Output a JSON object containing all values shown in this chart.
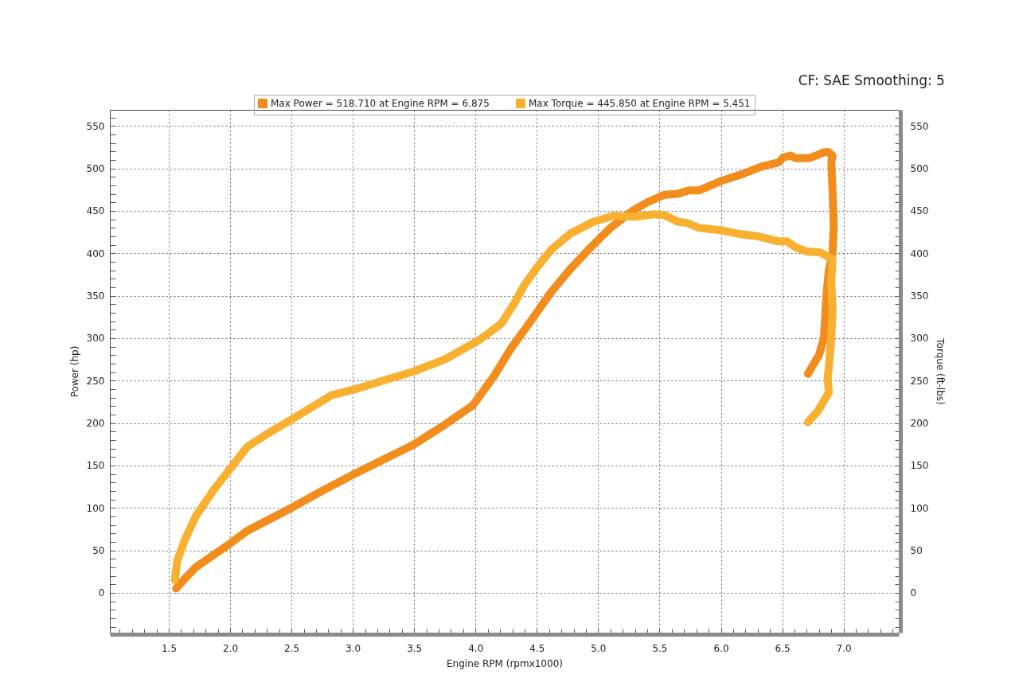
{
  "chart_data": {
    "type": "line",
    "title": "CF: SAE Smoothing: 5",
    "xlabel": "Engine RPM (rpmx1000)",
    "ylabel": "Power (hp)",
    "y2label": "Torque (ft-lbs)",
    "xlim": [
      1.02,
      7.45
    ],
    "ylim": [
      -47,
      569
    ],
    "y2lim": [
      -47,
      569
    ],
    "xticks": [
      {
        "value": 1.1,
        "label": null
      },
      {
        "value": 1.2,
        "label": null
      },
      {
        "value": 1.3,
        "label": null
      },
      {
        "value": 1.4,
        "label": null
      },
      1.5,
      {
        "value": 1.6,
        "label": null
      },
      {
        "value": 1.7,
        "label": null
      },
      {
        "value": 1.8,
        "label": null
      },
      {
        "value": 1.9,
        "label": null
      },
      {
        "value": 2,
        "label": "2.0"
      },
      {
        "value": 2.1,
        "label": null
      },
      {
        "value": 2.2,
        "label": null
      },
      {
        "value": 2.3,
        "label": null
      },
      {
        "value": 2.4,
        "label": null
      },
      2.5,
      {
        "value": 2.6,
        "label": null
      },
      {
        "value": 2.7,
        "label": null
      },
      {
        "value": 2.8,
        "label": null
      },
      {
        "value": 2.9,
        "label": null
      },
      {
        "value": 3,
        "label": "3.0"
      },
      {
        "value": 3.1,
        "label": null
      },
      {
        "value": 3.2,
        "label": null
      },
      {
        "value": 3.3,
        "label": null
      },
      {
        "value": 3.4,
        "label": null
      },
      3.5,
      {
        "value": 3.6,
        "label": null
      },
      {
        "value": 3.7,
        "label": null
      },
      {
        "value": 3.8,
        "label": null
      },
      {
        "value": 3.9,
        "label": null
      },
      {
        "value": 4,
        "label": "4.0"
      },
      {
        "value": 4.1,
        "label": null
      },
      {
        "value": 4.2,
        "label": null
      },
      {
        "value": 4.3,
        "label": null
      },
      {
        "value": 4.4,
        "label": null
      },
      4.5,
      {
        "value": 4.6,
        "label": null
      },
      {
        "value": 4.7,
        "label": null
      },
      {
        "value": 4.8,
        "label": null
      },
      {
        "value": 4.9,
        "label": null
      },
      {
        "value": 5,
        "label": "5.0"
      },
      {
        "value": 5.1,
        "label": null
      },
      {
        "value": 5.2,
        "label": null
      },
      {
        "value": 5.3,
        "label": null
      },
      {
        "value": 5.4,
        "label": null
      },
      5.5,
      {
        "value": 5.6,
        "label": null
      },
      {
        "value": 5.7,
        "label": null
      },
      {
        "value": 5.8,
        "label": null
      },
      {
        "value": 5.9,
        "label": null
      },
      {
        "value": 6,
        "label": "6.0"
      },
      {
        "value": 6.1,
        "label": null
      },
      {
        "value": 6.2,
        "label": null
      },
      {
        "value": 6.3,
        "label": null
      },
      {
        "value": 6.4,
        "label": null
      },
      6.5,
      {
        "value": 6.6,
        "label": null
      },
      {
        "value": 6.7,
        "label": null
      },
      {
        "value": 6.8,
        "label": null
      },
      {
        "value": 6.9,
        "label": null
      },
      {
        "value": 7,
        "label": "7.0"
      },
      {
        "value": 7.1,
        "label": null
      },
      {
        "value": 7.2,
        "label": null
      },
      {
        "value": 7.3,
        "label": null
      },
      {
        "value": 7.4,
        "label": null
      }
    ],
    "yticks": [
      {
        "value": -40,
        "label": null
      },
      {
        "value": -30,
        "label": null
      },
      {
        "value": -20,
        "label": null
      },
      {
        "value": -10,
        "label": null
      },
      0,
      {
        "value": 10,
        "label": null
      },
      {
        "value": 20,
        "label": null
      },
      {
        "value": 30,
        "label": null
      },
      {
        "value": 40,
        "label": null
      },
      50,
      {
        "value": 60,
        "label": null
      },
      {
        "value": 70,
        "label": null
      },
      {
        "value": 80,
        "label": null
      },
      {
        "value": 90,
        "label": null
      },
      100,
      {
        "value": 110,
        "label": null
      },
      {
        "value": 120,
        "label": null
      },
      {
        "value": 130,
        "label": null
      },
      {
        "value": 140,
        "label": null
      },
      150,
      {
        "value": 160,
        "label": null
      },
      {
        "value": 170,
        "label": null
      },
      {
        "value": 180,
        "label": null
      },
      {
        "value": 190,
        "label": null
      },
      200,
      {
        "value": 210,
        "label": null
      },
      {
        "value": 220,
        "label": null
      },
      {
        "value": 230,
        "label": null
      },
      {
        "value": 240,
        "label": null
      },
      250,
      {
        "value": 260,
        "label": null
      },
      {
        "value": 270,
        "label": null
      },
      {
        "value": 280,
        "label": null
      },
      {
        "value": 290,
        "label": null
      },
      300,
      {
        "value": 310,
        "label": null
      },
      {
        "value": 320,
        "label": null
      },
      {
        "value": 330,
        "label": null
      },
      {
        "value": 340,
        "label": null
      },
      350,
      {
        "value": 360,
        "label": null
      },
      {
        "value": 370,
        "label": null
      },
      {
        "value": 380,
        "label": null
      },
      {
        "value": 390,
        "label": null
      },
      400,
      {
        "value": 410,
        "label": null
      },
      {
        "value": 420,
        "label": null
      },
      {
        "value": 430,
        "label": null
      },
      {
        "value": 440,
        "label": null
      },
      450,
      {
        "value": 460,
        "label": null
      },
      {
        "value": 470,
        "label": null
      },
      {
        "value": 480,
        "label": null
      },
      {
        "value": 490,
        "label": null
      },
      500,
      {
        "value": 510,
        "label": null
      },
      {
        "value": 520,
        "label": null
      },
      {
        "value": 530,
        "label": null
      },
      {
        "value": 540,
        "label": null
      },
      550,
      {
        "value": 560,
        "label": null
      }
    ],
    "y2ticks": [
      {
        "value": -40,
        "label": null
      },
      {
        "value": -30,
        "label": null
      },
      {
        "value": -20,
        "label": null
      },
      {
        "value": -10,
        "label": null
      },
      0,
      {
        "value": 10,
        "label": null
      },
      {
        "value": 20,
        "label": null
      },
      {
        "value": 30,
        "label": null
      },
      {
        "value": 40,
        "label": null
      },
      50,
      {
        "value": 60,
        "label": null
      },
      {
        "value": 70,
        "label": null
      },
      {
        "value": 80,
        "label": null
      },
      {
        "value": 90,
        "label": null
      },
      100,
      {
        "value": 110,
        "label": null
      },
      {
        "value": 120,
        "label": null
      },
      {
        "value": 130,
        "label": null
      },
      {
        "value": 140,
        "label": null
      },
      150,
      {
        "value": 160,
        "label": null
      },
      {
        "value": 170,
        "label": null
      },
      {
        "value": 180,
        "label": null
      },
      {
        "value": 190,
        "label": null
      },
      200,
      {
        "value": 210,
        "label": null
      },
      {
        "value": 220,
        "label": null
      },
      {
        "value": 230,
        "label": null
      },
      {
        "value": 240,
        "label": null
      },
      250,
      {
        "value": 260,
        "label": null
      },
      {
        "value": 270,
        "label": null
      },
      {
        "value": 280,
        "label": null
      },
      {
        "value": 290,
        "label": null
      },
      300,
      {
        "value": 310,
        "label": null
      },
      {
        "value": 320,
        "label": null
      },
      {
        "value": 330,
        "label": null
      },
      {
        "value": 340,
        "label": null
      },
      350,
      {
        "value": 360,
        "label": null
      },
      {
        "value": 370,
        "label": null
      },
      {
        "value": 380,
        "label": null
      },
      {
        "value": 390,
        "label": null
      },
      400,
      {
        "value": 410,
        "label": null
      },
      {
        "value": 420,
        "label": null
      },
      {
        "value": 430,
        "label": null
      },
      {
        "value": 440,
        "label": null
      },
      450,
      {
        "value": 460,
        "label": null
      },
      {
        "value": 470,
        "label": null
      },
      {
        "value": 480,
        "label": null
      },
      {
        "value": 490,
        "label": null
      },
      500,
      {
        "value": 510,
        "label": null
      },
      {
        "value": 520,
        "label": null
      },
      {
        "value": 530,
        "label": null
      },
      {
        "value": 540,
        "label": null
      },
      550,
      {
        "value": 560,
        "label": null
      }
    ],
    "grid": true,
    "legend": "top",
    "line_style": "solid",
    "series": [
      {
        "name": "Max Power = 518.710 at Engine RPM = 6.875",
        "color": "#f28c1c",
        "x": [
          1.56,
          1.64,
          1.72,
          1.86,
          2.0,
          2.14,
          2.3,
          2.5,
          2.75,
          3.0,
          3.25,
          3.49,
          3.75,
          3.98,
          4.15,
          4.29,
          4.45,
          4.61,
          4.77,
          4.94,
          5.1,
          5.28,
          5.4,
          5.54,
          5.65,
          5.74,
          5.82,
          6.0,
          6.17,
          6.33,
          6.47,
          6.51,
          6.57,
          6.61,
          6.72,
          6.79,
          6.84,
          6.88,
          6.91,
          6.9,
          6.91,
          6.92,
          6.91,
          6.88,
          6.86,
          6.85,
          6.84,
          6.8,
          6.75,
          6.71
        ],
        "values": [
          5,
          18,
          30,
          44,
          58,
          73,
          85,
          100,
          120,
          139,
          157,
          174,
          198,
          221,
          255,
          288,
          320,
          353,
          381,
          407,
          430,
          450,
          460,
          469,
          470,
          474,
          474,
          485,
          493,
          502,
          507,
          513,
          515,
          512,
          512,
          516,
          519,
          519,
          515,
          507,
          473,
          433,
          400,
          380,
          350,
          326,
          300,
          280,
          268,
          258
        ]
      },
      {
        "name": "Max Torque = 445.850 at Engine RPM = 5.451",
        "color": "#f8b030",
        "axis": "y2",
        "x": [
          1.55,
          1.57,
          1.63,
          1.72,
          1.87,
          2.0,
          2.14,
          2.3,
          2.5,
          2.83,
          3.0,
          3.25,
          3.5,
          3.75,
          4.0,
          4.1,
          4.21,
          4.32,
          4.4,
          4.5,
          4.61,
          4.77,
          4.96,
          5.12,
          5.31,
          5.45,
          5.54,
          5.65,
          5.72,
          5.82,
          6.0,
          6.14,
          6.3,
          6.47,
          6.54,
          6.61,
          6.7,
          6.81,
          6.91,
          6.9,
          6.91,
          6.9,
          6.88,
          6.87,
          6.88,
          6.79,
          6.71
        ],
        "values": [
          15,
          38,
          62,
          90,
          122,
          146,
          172,
          187,
          204,
          233,
          239,
          250,
          261,
          275,
          295,
          305,
          317,
          342,
          363,
          383,
          403,
          423,
          437,
          444,
          443,
          446,
          445,
          437,
          436,
          430,
          427,
          423,
          420,
          414,
          414,
          407,
          402,
          401,
          393,
          366,
          333,
          300,
          266,
          253,
          236,
          214,
          201
        ]
      }
    ]
  }
}
